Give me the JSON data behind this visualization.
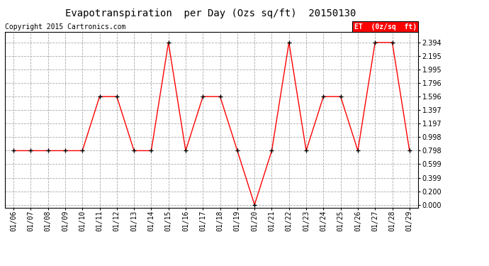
{
  "title": "Evapotranspiration  per Day (Ozs sq/ft)  20150130",
  "copyright": "Copyright 2015 Cartronics.com",
  "legend_label": "ET  (0z/sq  ft)",
  "dates": [
    "01/06",
    "01/07",
    "01/08",
    "01/09",
    "01/10",
    "01/11",
    "01/12",
    "01/13",
    "01/14",
    "01/15",
    "01/16",
    "01/17",
    "01/18",
    "01/19",
    "01/20",
    "01/21",
    "01/22",
    "01/23",
    "01/24",
    "01/25",
    "01/26",
    "01/27",
    "01/28",
    "01/29"
  ],
  "values": [
    0.798,
    0.798,
    0.798,
    0.798,
    0.798,
    1.596,
    1.596,
    0.798,
    0.798,
    2.394,
    0.798,
    1.596,
    1.596,
    0.798,
    0.0,
    0.798,
    2.394,
    0.798,
    1.596,
    1.596,
    0.798,
    2.394,
    2.394,
    0.798
  ],
  "yticks": [
    0.0,
    0.2,
    0.399,
    0.599,
    0.798,
    0.998,
    1.197,
    1.397,
    1.596,
    1.796,
    1.995,
    2.195,
    2.394
  ],
  "ymin": -0.04,
  "ymax": 2.55,
  "line_color": "red",
  "marker_color": "black",
  "grid_color": "#aaaaaa",
  "bg_color": "white",
  "title_fontsize": 10,
  "copyright_fontsize": 7,
  "tick_fontsize": 7,
  "ytick_fontsize": 7,
  "legend_bg": "red",
  "legend_text_color": "white"
}
